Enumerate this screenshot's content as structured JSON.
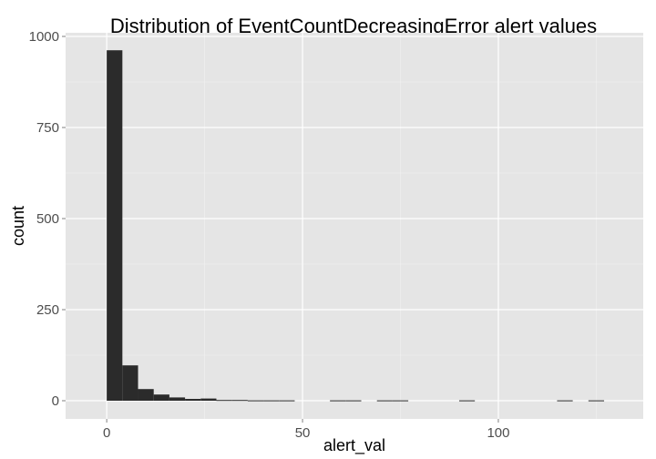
{
  "chart_data": {
    "type": "bar",
    "title": "Distribution of EventCountDecreasingError alert values",
    "xlabel": "alert_val",
    "ylabel": "count",
    "xlim": [
      -10.5,
      137
    ],
    "ylim": [
      -50,
      1010
    ],
    "x_ticks": [
      0,
      50,
      100
    ],
    "x_tick_labels": [
      "0",
      "50",
      "100"
    ],
    "y_ticks": [
      0,
      250,
      500,
      750,
      1000
    ],
    "y_tick_labels": [
      "0",
      "250",
      "500",
      "750",
      "1000"
    ],
    "bin_width": 4,
    "bins": [
      {
        "x0": 0,
        "x1": 4,
        "count": 962
      },
      {
        "x0": 4,
        "x1": 8,
        "count": 97
      },
      {
        "x0": 8,
        "x1": 12,
        "count": 32
      },
      {
        "x0": 12,
        "x1": 16,
        "count": 17
      },
      {
        "x0": 16,
        "x1": 20,
        "count": 9
      },
      {
        "x0": 20,
        "x1": 24,
        "count": 5
      },
      {
        "x0": 24,
        "x1": 28,
        "count": 6
      },
      {
        "x0": 28,
        "x1": 32,
        "count": 2
      },
      {
        "x0": 32,
        "x1": 36,
        "count": 2
      },
      {
        "x0": 36,
        "x1": 40,
        "count": 1
      },
      {
        "x0": 40,
        "x1": 44,
        "count": 1
      },
      {
        "x0": 44,
        "x1": 48,
        "count": 1
      },
      {
        "x0": 57,
        "x1": 61,
        "count": 1
      },
      {
        "x0": 61,
        "x1": 65,
        "count": 1
      },
      {
        "x0": 69,
        "x1": 73,
        "count": 1
      },
      {
        "x0": 73,
        "x1": 77,
        "count": 1
      },
      {
        "x0": 90,
        "x1": 94,
        "count": 1
      },
      {
        "x0": 115,
        "x1": 119,
        "count": 1
      },
      {
        "x0": 123,
        "x1": 127,
        "count": 1
      }
    ],
    "grid": true,
    "legend": "none",
    "colors": {
      "panel_background": "#e5e5e5",
      "grid_major": "#ffffff",
      "grid_minor": "#f2f2f2",
      "bar_fill": "#2b2b2b"
    }
  }
}
